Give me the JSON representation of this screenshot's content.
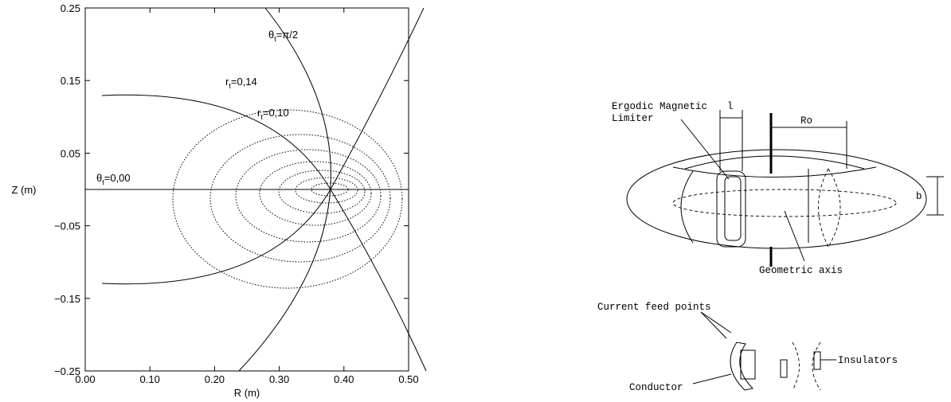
{
  "chart_data": {
    "type": "coordinate-map",
    "xlabel": "R (m)",
    "ylabel": "Z (m)",
    "xlim": [
      0,
      0.5
    ],
    "ylim": [
      -0.25,
      0.25
    ],
    "xticks": [
      {
        "value": 0,
        "label": "0.00"
      },
      {
        "value": 0.1,
        "label": "0.10"
      },
      {
        "value": 0.2,
        "label": "0.20"
      },
      {
        "value": 0.3,
        "label": "0.30"
      },
      {
        "value": 0.4,
        "label": "0.40"
      },
      {
        "value": 0.5,
        "label": "0.50"
      }
    ],
    "yticks": [
      {
        "value": 0.25,
        "label": "0.25"
      },
      {
        "value": 0.15,
        "label": "0.15"
      },
      {
        "value": 0.05,
        "label": "0.05"
      },
      {
        "value": -0.05,
        "label": "−0.05"
      },
      {
        "value": -0.15,
        "label": "−0.15"
      },
      {
        "value": -0.25,
        "label": "−0.25"
      }
    ],
    "annotations": [
      {
        "symbol": "θ",
        "subscript": "t",
        "text": "=π/2"
      },
      {
        "symbol": "r",
        "subscript": "t",
        "text": "=0,14"
      },
      {
        "symbol": "r",
        "subscript": "t",
        "text": "=0,10"
      },
      {
        "symbol": "θ",
        "subscript": "t",
        "text": "=0,00"
      }
    ]
  },
  "diagram": {
    "labels": {
      "limiter": [
        "Ergodic Magnetic",
        "Limiter"
      ],
      "width": "l",
      "major_radius": "Ro",
      "minor_radius": "b",
      "axis": "Geometric axis",
      "feed": "Current feed points",
      "insulators": "Insulators",
      "conductor": "Conductor"
    }
  }
}
